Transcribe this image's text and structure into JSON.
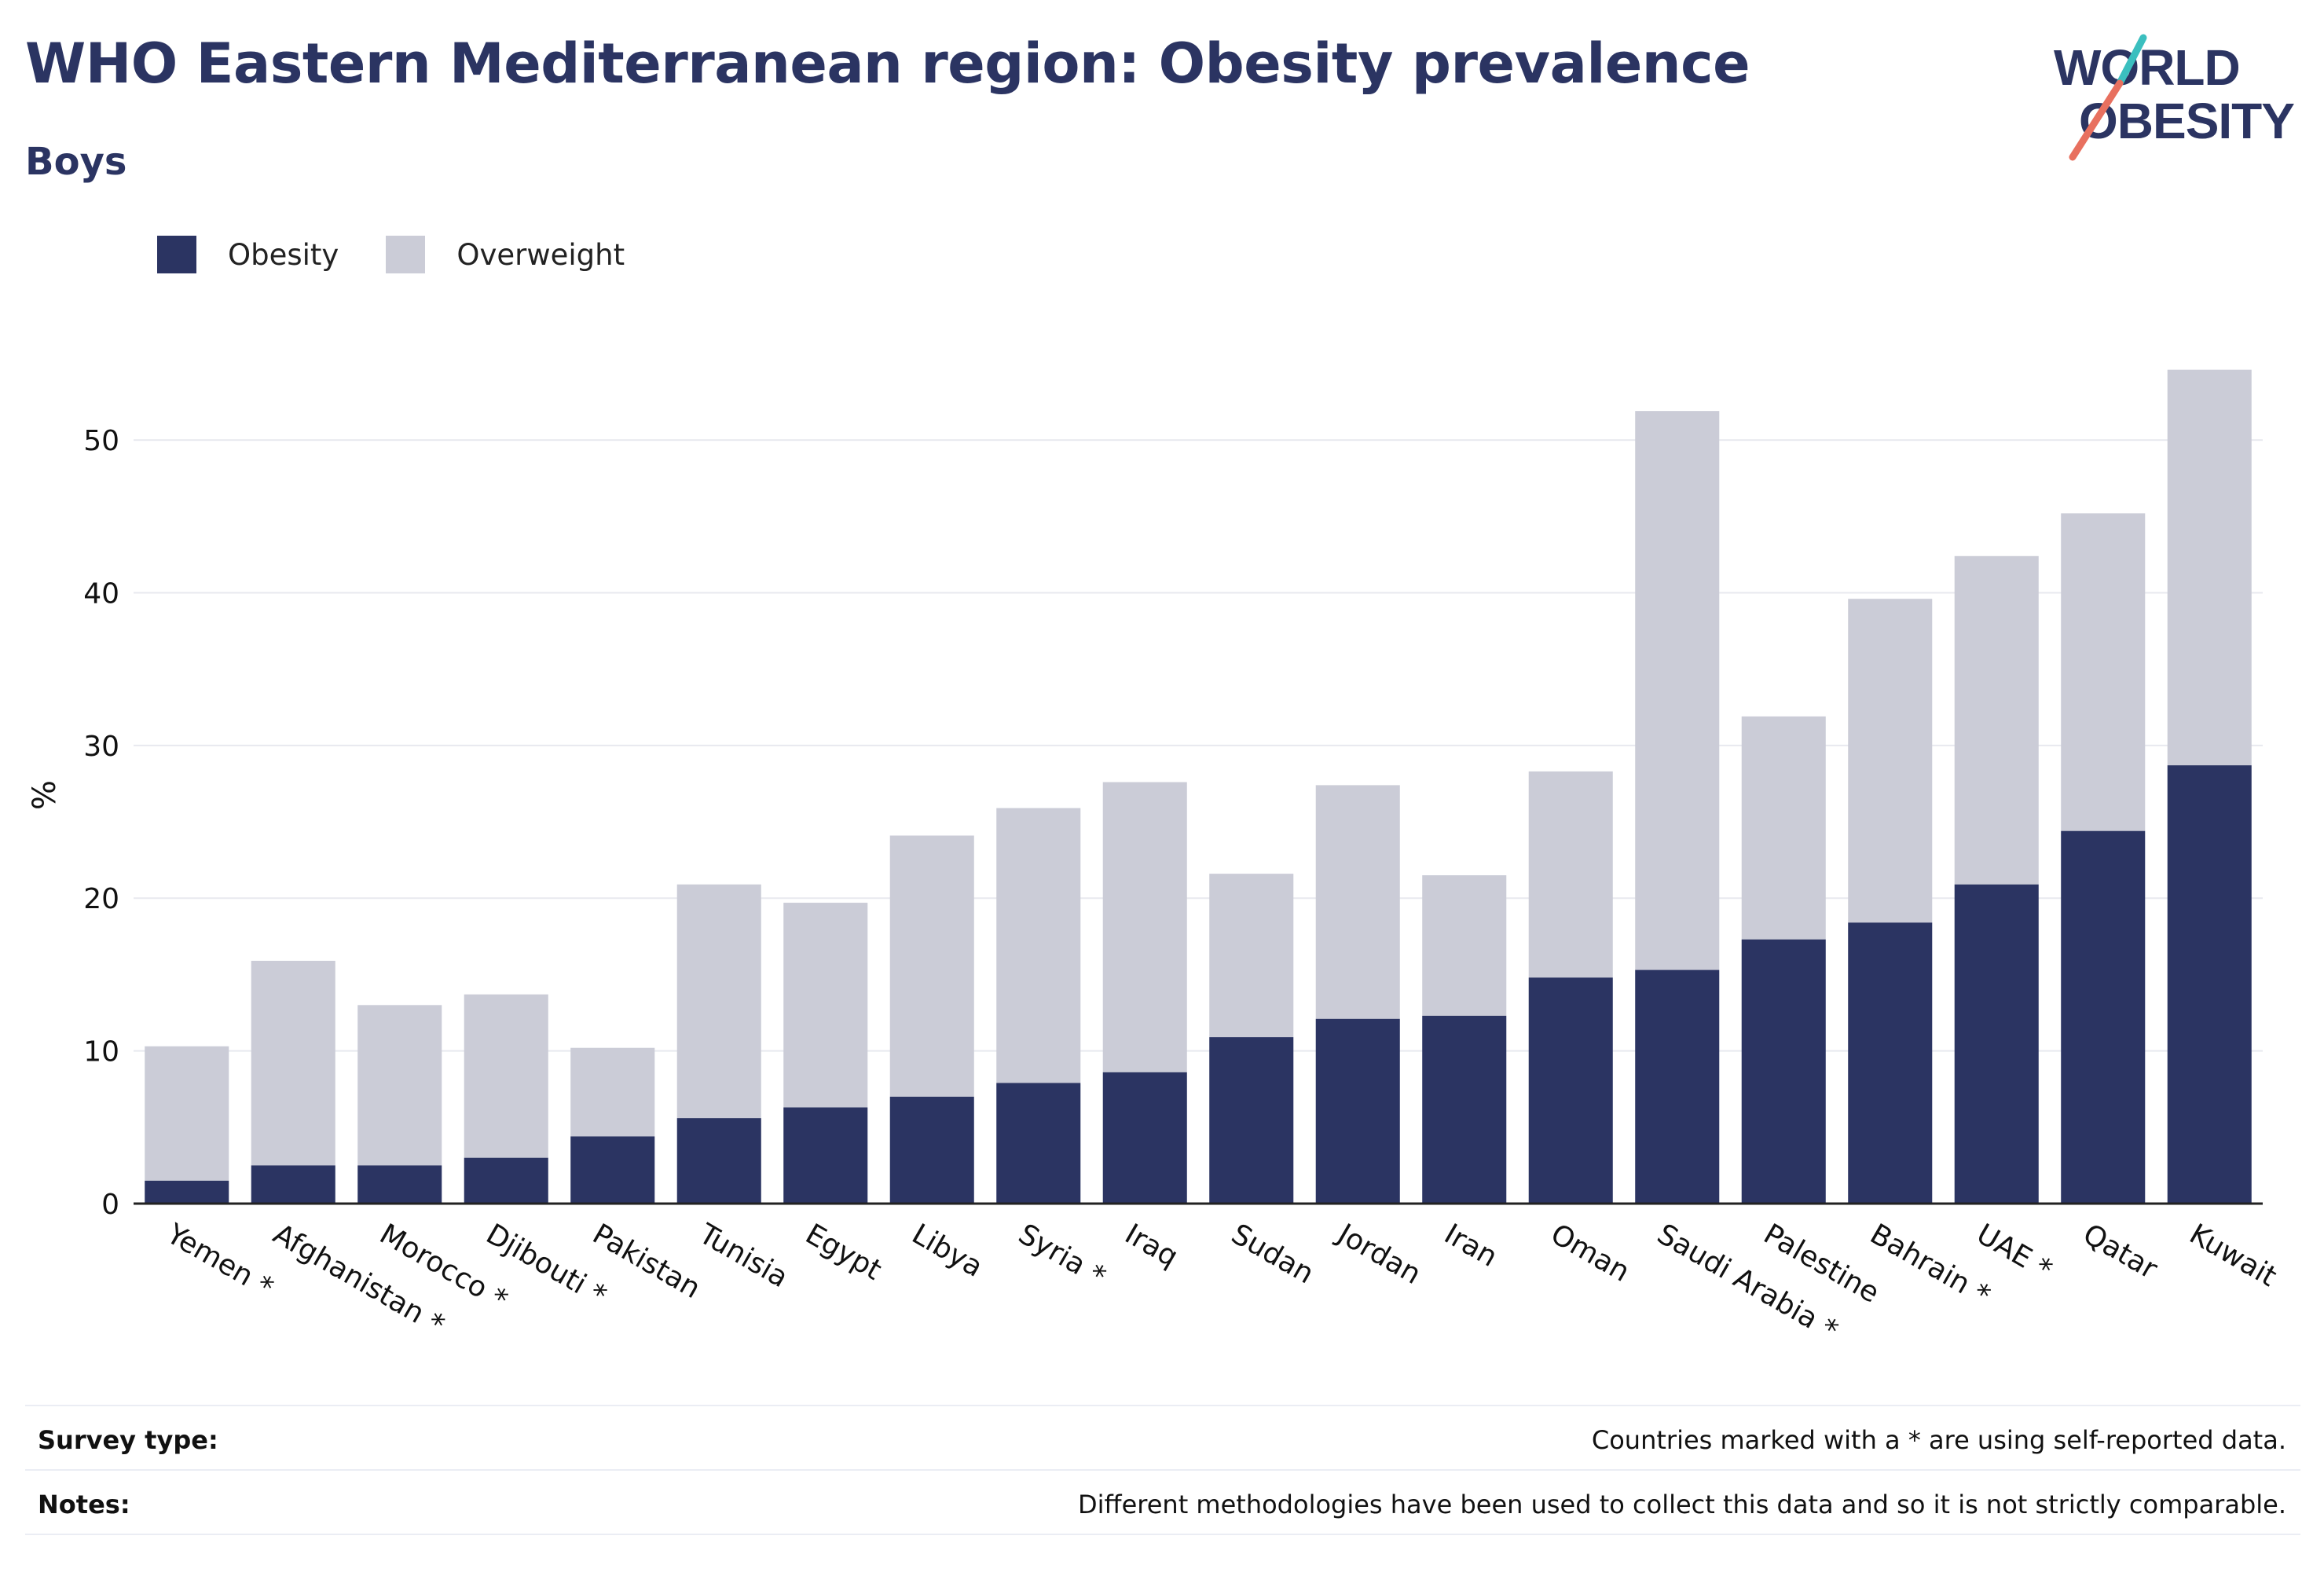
{
  "title": "WHO Eastern Mediterranean region: Obesity prevalence",
  "subtitle": "Boys",
  "logo": {
    "line1": "WORLD",
    "line2": "OBESITY"
  },
  "legend": {
    "obesity": "Obesity",
    "overweight": "Overweight"
  },
  "colors": {
    "obesity": "#2b3462",
    "overweight": "#cbccd7",
    "title": "#2b3462",
    "logo_slash_teal": "#3bbfbf",
    "logo_slash_coral": "#e8705f"
  },
  "footer": {
    "survey_label": "Survey type:",
    "survey_text": "Countries marked with a * are using self-reported data.",
    "notes_label": "Notes:",
    "notes_text": "Different methodologies have been used to collect this data and so it is not strictly comparable."
  },
  "chart_data": {
    "type": "bar",
    "stacked": true,
    "title": "WHO Eastern Mediterranean region: Obesity prevalence",
    "subtitle": "Boys",
    "xlabel": "",
    "ylabel": "%",
    "ylim": [
      0,
      57
    ],
    "yticks": [
      0,
      10,
      20,
      30,
      40,
      50
    ],
    "grid": true,
    "legend_position": "top-left",
    "categories": [
      "Yemen *",
      "Afghanistan *",
      "Morocco *",
      "Djibouti *",
      "Pakistan",
      "Tunisia",
      "Egypt",
      "Libya",
      "Syria *",
      "Iraq",
      "Sudan",
      "Jordan",
      "Iran",
      "Oman",
      "Saudi Arabia *",
      "Palestine",
      "Bahrain *",
      "UAE *",
      "Qatar",
      "Kuwait"
    ],
    "series": [
      {
        "name": "Obesity",
        "values": [
          1.5,
          2.5,
          2.5,
          3.0,
          4.4,
          5.6,
          6.3,
          7.0,
          7.9,
          8.6,
          10.9,
          12.1,
          12.3,
          14.8,
          15.3,
          17.3,
          18.4,
          20.9,
          24.4,
          28.7
        ]
      },
      {
        "name": "Overweight",
        "values": [
          8.8,
          13.4,
          10.5,
          10.7,
          5.8,
          15.3,
          13.4,
          17.1,
          18.0,
          19.0,
          10.7,
          15.3,
          9.2,
          13.5,
          36.6,
          14.6,
          21.2,
          21.5,
          20.8,
          25.9
        ]
      }
    ]
  }
}
